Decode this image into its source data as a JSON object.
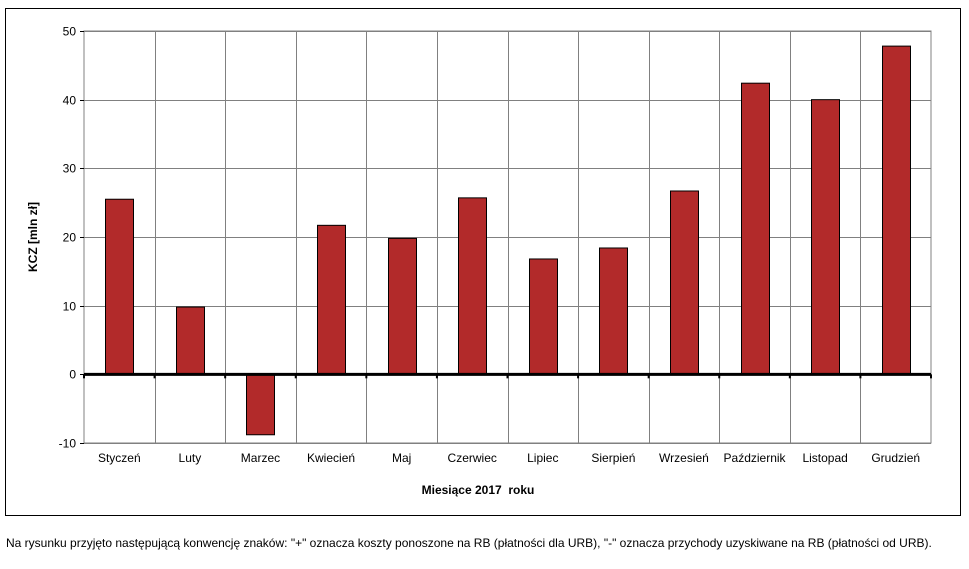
{
  "chart_data": {
    "type": "bar",
    "categories": [
      "Styczeń",
      "Luty",
      "Marzec",
      "Kwiecień",
      "Maj",
      "Czerwiec",
      "Lipiec",
      "Sierpień",
      "Wrzesień",
      "Październik",
      "Listopad",
      "Grudzień"
    ],
    "values": [
      25.5,
      9.8,
      -8.8,
      21.7,
      19.8,
      25.7,
      16.8,
      18.4,
      26.7,
      42.4,
      40.0,
      47.8
    ],
    "xlabel": "Miesiące 2017  roku",
    "ylabel": "KCZ [mln zł]",
    "ylim": [
      -10,
      50
    ],
    "yticks": [
      -10,
      0,
      10,
      20,
      30,
      40,
      50
    ],
    "grid": true,
    "bar_color": "#B22A2A",
    "grid_color": "#808080"
  },
  "note": "Na rysunku przyjęto następującą konwencję znaków: \"+\" oznacza koszty ponoszone na RB (płatności dla URB), \"-\" oznacza przychody uzyskiwane na RB (płatności od URB)."
}
